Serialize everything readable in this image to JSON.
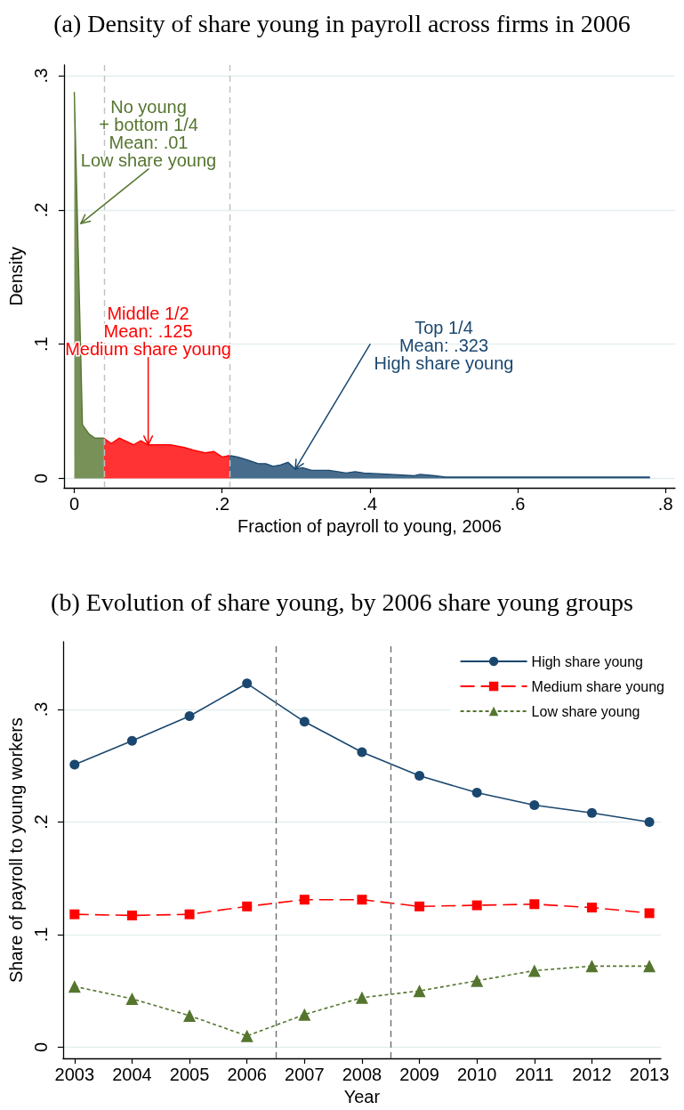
{
  "chart_data": [
    {
      "type": "area",
      "title": "(a) Density of share young in payroll across firms in 2006",
      "xlabel": "Fraction of payroll to young, 2006",
      "ylabel": "Density",
      "series": [
        {
          "color": "#55752f",
          "x": [
            0,
            0.011,
            0.02,
            0.028,
            0.04
          ],
          "values": [
            0.288,
            0.04,
            0.033,
            0.03,
            0.03
          ]
        },
        {
          "color": "#ff0000",
          "x": [
            0.04,
            0.05,
            0.061,
            0.08,
            0.09,
            0.1,
            0.13,
            0.149,
            0.161,
            0.177,
            0.189,
            0.2,
            0.21
          ],
          "values": [
            0.03,
            0.026,
            0.03,
            0.025,
            0.028,
            0.025,
            0.025,
            0.023,
            0.021,
            0.019,
            0.02,
            0.016,
            0.017
          ]
        },
        {
          "color": "#1a476f",
          "x": [
            0.21,
            0.221,
            0.233,
            0.249,
            0.259,
            0.269,
            0.279,
            0.289,
            0.299,
            0.309,
            0.321,
            0.345,
            0.368,
            0.38,
            0.392,
            0.428,
            0.46,
            0.468,
            0.488,
            0.502,
            0.544,
            0.603,
            0.683,
            0.779
          ],
          "values": [
            0.017,
            0.016,
            0.014,
            0.011,
            0.011,
            0.009,
            0.01,
            0.012,
            0.007,
            0.008,
            0.006,
            0.006,
            0.004,
            0.005,
            0.004,
            0.003,
            0.002,
            0.003,
            0.002,
            0.001,
            0.001,
            0.001,
            0.001,
            0.001
          ]
        }
      ],
      "xlim": [
        -0.014,
        0.813
      ],
      "xticks": [
        0,
        {
          "value": 0.2,
          "label": ".2"
        },
        {
          "value": 0.4,
          "label": ".4"
        },
        {
          "value": 0.6,
          "label": ".6"
        },
        {
          "value": 0.8,
          "label": ".8"
        }
      ],
      "ylim": [
        -0.007,
        0.308
      ],
      "yticks": [
        0,
        {
          "value": 0.1,
          "label": ".1"
        },
        {
          "value": 0.2,
          "label": ".2"
        },
        {
          "value": 0.3,
          "label": ".3"
        }
      ],
      "ref_lines": [
        {
          "axis": "x",
          "value": 0.04,
          "color": "#c0c0c0",
          "line_style": "dashed"
        },
        {
          "axis": "x",
          "value": 0.21,
          "color": "#c0c0c0",
          "line_style": "dashed"
        }
      ],
      "annotations": [
        {
          "text": "No young\n+ bottom 1/4\nMean: .01\nLow share young",
          "x": 0.009,
          "y": 0.19
        },
        {
          "text": "Middle 1/2\nMean: .125\nMedium share young",
          "x": 0.1,
          "y": 0.025
        },
        {
          "text": "Top 1/4\nMean: .323\nHigh share young",
          "x": 0.299,
          "y": 0.007
        }
      ],
      "grid": "y"
    },
    {
      "type": "line",
      "title": "(b) Evolution of share young, by 2006 share young groups",
      "xlabel": "Year",
      "ylabel": "Share of payroll to young workers",
      "x": [
        2003,
        2004,
        2005,
        2006,
        2007,
        2008,
        2009,
        2010,
        2011,
        2012,
        2013
      ],
      "series": [
        {
          "name": "High share young",
          "color": "#1a476f",
          "marker": "circle",
          "line_style": "solid",
          "values": [
            0.251,
            0.272,
            0.294,
            0.323,
            0.289,
            0.262,
            0.241,
            0.226,
            0.215,
            0.208,
            0.2
          ]
        },
        {
          "name": "Medium share young",
          "color": "#ff0000",
          "marker": "square",
          "line_style": "dashed",
          "values": [
            0.118,
            0.117,
            0.118,
            0.125,
            0.131,
            0.131,
            0.125,
            0.126,
            0.127,
            0.124,
            0.119
          ]
        },
        {
          "name": "Low share young",
          "color": "#55752f",
          "marker": "triangle",
          "line_style": "dotted",
          "values": [
            0.054,
            0.043,
            0.028,
            0.01,
            0.029,
            0.044,
            0.05,
            0.059,
            0.068,
            0.072,
            0.072
          ]
        }
      ],
      "xlim": [
        2002.8,
        2013.2
      ],
      "xticks": [
        2003,
        2004,
        2005,
        2006,
        2007,
        2008,
        2009,
        2010,
        2011,
        2012,
        2013
      ],
      "ylim": [
        -0.01,
        0.36
      ],
      "yticks": [
        0,
        {
          "value": 0.1,
          "label": ".1"
        },
        {
          "value": 0.2,
          "label": ".2"
        },
        {
          "value": 0.3,
          "label": ".3"
        }
      ],
      "ref_lines": [
        {
          "axis": "x",
          "value": 2006.5,
          "color": "#6e6e6e",
          "line_style": "dashed"
        },
        {
          "axis": "x",
          "value": 2008.5,
          "color": "#6e6e6e",
          "line_style": "dashed"
        }
      ],
      "grid": "y",
      "legend": "top right"
    }
  ]
}
